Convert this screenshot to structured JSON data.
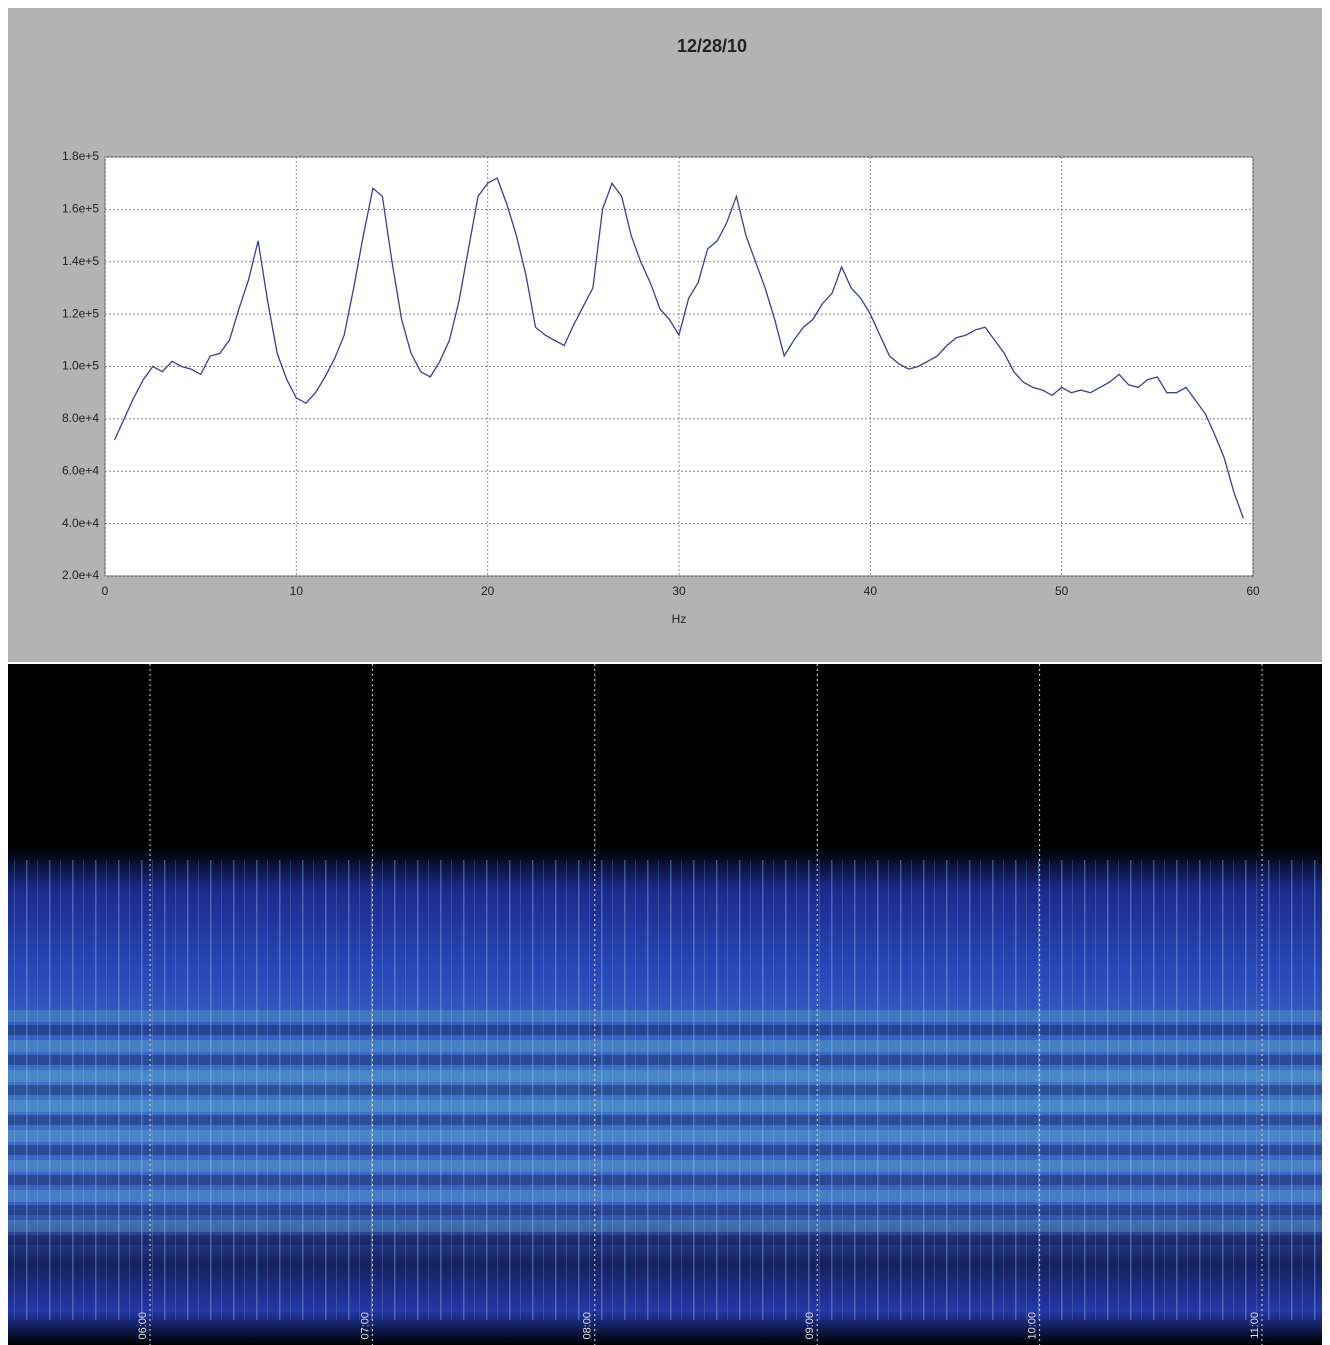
{
  "chart_data": {
    "type": "line",
    "title": "12/28/10",
    "xlabel": "Hz",
    "color": "#3a3f8f",
    "grid": true,
    "xlim": [
      0,
      60
    ],
    "xticks": [
      0,
      10,
      20,
      30,
      40,
      50,
      60
    ],
    "ylim": [
      20000,
      180000
    ],
    "yticks": [
      {
        "value": 20000,
        "label": "2.0e+4"
      },
      {
        "value": 40000,
        "label": "4.0e+4"
      },
      {
        "value": 60000,
        "label": "6.0e+4"
      },
      {
        "value": 80000,
        "label": "8.0e+4"
      },
      {
        "value": 100000,
        "label": "1.0e+5"
      },
      {
        "value": 120000,
        "label": "1.2e+5"
      },
      {
        "value": 140000,
        "label": "1.4e+5"
      },
      {
        "value": 160000,
        "label": "1.6e+5"
      },
      {
        "value": 180000,
        "label": "1.8e+5"
      }
    ],
    "x": [
      0.5,
      1,
      1.5,
      2,
      2.5,
      3,
      3.5,
      4,
      4.5,
      5,
      5.5,
      6,
      6.5,
      7,
      7.5,
      8,
      8.5,
      9,
      9.5,
      10,
      10.5,
      11,
      11.5,
      12,
      12.5,
      13,
      13.5,
      14,
      14.5,
      15,
      15.5,
      16,
      16.5,
      17,
      17.5,
      18,
      18.5,
      19,
      19.5,
      20,
      20.5,
      21,
      21.5,
      22,
      22.5,
      23,
      23.5,
      24,
      24.5,
      25,
      25.5,
      26,
      26.5,
      27,
      27.5,
      28,
      28.5,
      29,
      29.5,
      30,
      30.5,
      31,
      31.5,
      32,
      32.5,
      33,
      33.5,
      34,
      34.5,
      35,
      35.5,
      36,
      36.5,
      37,
      37.5,
      38,
      38.5,
      39,
      39.5,
      40,
      40.5,
      41,
      41.5,
      42,
      42.5,
      43,
      43.5,
      44,
      44.5,
      45,
      45.5,
      46,
      46.5,
      47,
      47.5,
      48,
      48.5,
      49,
      49.5,
      50,
      50.5,
      51,
      51.5,
      52,
      52.5,
      53,
      53.5,
      54,
      54.5,
      55,
      55.5,
      56,
      56.5,
      57,
      57.5,
      58,
      58.5,
      59,
      59.5
    ],
    "values": [
      72000,
      80000,
      88000,
      95000,
      100000,
      98000,
      102000,
      100000,
      99000,
      97000,
      104000,
      105000,
      110000,
      122000,
      133000,
      148000,
      125000,
      105000,
      95000,
      88000,
      86000,
      90000,
      96000,
      103000,
      112000,
      130000,
      150000,
      168000,
      165000,
      140000,
      118000,
      105000,
      98000,
      96000,
      102000,
      110000,
      125000,
      145000,
      165000,
      170000,
      172000,
      162000,
      150000,
      135000,
      115000,
      112000,
      110000,
      108000,
      116000,
      123000,
      130000,
      160000,
      170000,
      165000,
      150000,
      140000,
      132000,
      122000,
      118000,
      112000,
      126000,
      132000,
      145000,
      148000,
      155000,
      165000,
      150000,
      140000,
      130000,
      118000,
      104000,
      110000,
      115000,
      118000,
      124000,
      128000,
      138000,
      130000,
      126000,
      120000,
      112000,
      104000,
      101000,
      99000,
      100000,
      102000,
      104000,
      108000,
      111000,
      112000,
      114000,
      115000,
      110000,
      105000,
      98000,
      94000,
      92000,
      91000,
      89000,
      92000,
      90000,
      91000,
      90000,
      92000,
      94000,
      97000,
      93000,
      92000,
      95000,
      96000,
      90000,
      90000,
      92000,
      87000,
      82000,
      74000,
      65000,
      52000,
      42000
    ]
  },
  "spectrogram": {
    "time_labels": [
      "06:00",
      "07:00",
      "08:00",
      "09:00",
      "10:00",
      "11:00"
    ]
  }
}
